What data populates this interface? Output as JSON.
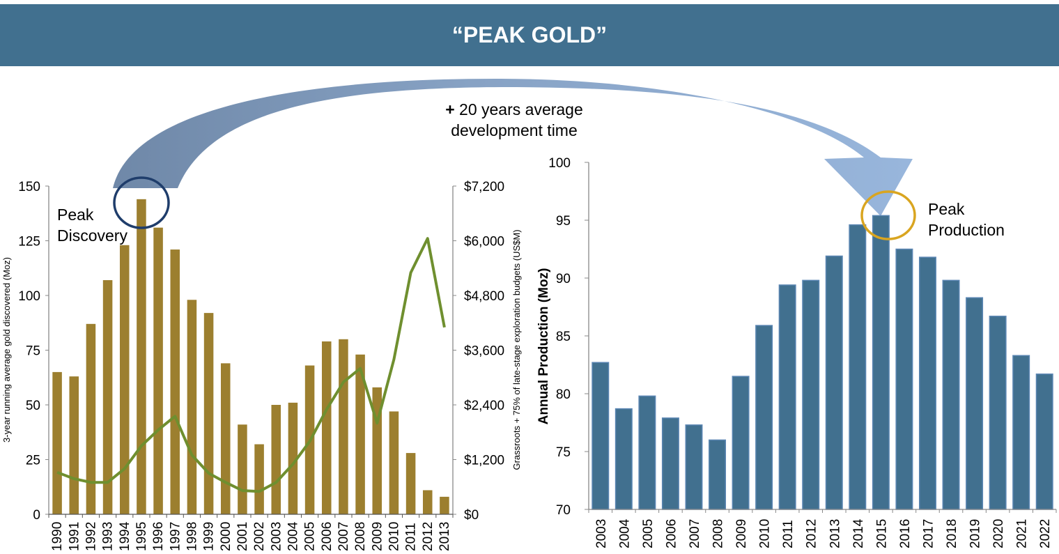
{
  "header": {
    "title": "“PEAK GOLD”",
    "background": "#41708f"
  },
  "arrow_annotation": {
    "plus_sign": "+",
    "line1": "20 years average",
    "line2": "development time"
  },
  "chart_data": [
    {
      "type": "bar",
      "name": "gold-discovery-vs-exploration",
      "categories": [
        "1990",
        "1991",
        "1992",
        "1993",
        "1994",
        "1995",
        "1996",
        "1997",
        "1998",
        "1999",
        "2000",
        "2001",
        "2002",
        "2003",
        "2004",
        "2005",
        "2006",
        "2007",
        "2008",
        "2009",
        "2010",
        "2011",
        "2012",
        "2013"
      ],
      "series": [
        {
          "name": "3-year running average gold discovered",
          "type": "bar",
          "axis": "left",
          "color": "#9c7f2f",
          "values": [
            65,
            63,
            87,
            107,
            123,
            144,
            131,
            121,
            98,
            92,
            69,
            41,
            32,
            50,
            51,
            68,
            79,
            80,
            73,
            58,
            47,
            28,
            11,
            8
          ]
        },
        {
          "name": "Grassroots + 75% of late-stage exploration budgets",
          "type": "line",
          "axis": "right",
          "color": "#6f8f2f",
          "values": [
            920,
            780,
            700,
            700,
            1000,
            1500,
            1850,
            2150,
            1300,
            900,
            700,
            520,
            500,
            700,
            1100,
            1600,
            2300,
            2900,
            3200,
            2000,
            3400,
            5300,
            6050,
            4100
          ]
        }
      ],
      "ylabel": "3-year running average gold discovered (Moz)",
      "ylabel_right": "Grassroots + 75% of late-stage exploration budgets (US$M)",
      "ylim": [
        0,
        150
      ],
      "yticks": [
        "0",
        "25",
        "50",
        "75",
        "100",
        "125",
        "150"
      ],
      "ylim_right": [
        0,
        7200
      ],
      "yticks_right": [
        "$0",
        "$1,200",
        "$2,400",
        "$3,600",
        "$4,800",
        "$6,000",
        "$7,200"
      ],
      "annotation": {
        "line1": "Peak",
        "line2": "Discovery",
        "highlight_category": "1995",
        "circle_color": "#1f3d6b"
      },
      "grid": false
    },
    {
      "type": "bar",
      "name": "annual-gold-production",
      "categories": [
        "2003",
        "2004",
        "2005",
        "2006",
        "2007",
        "2008",
        "2009",
        "2010",
        "2011",
        "2012",
        "2013",
        "2014",
        "2015",
        "2016",
        "2017",
        "2018",
        "2019",
        "2020",
        "2021",
        "2022"
      ],
      "series": [
        {
          "name": "Annual Production",
          "color": "#41708f",
          "values": [
            82.7,
            78.7,
            79.8,
            77.9,
            77.3,
            76.0,
            81.5,
            85.9,
            89.4,
            89.8,
            91.9,
            94.6,
            95.4,
            92.5,
            91.8,
            89.8,
            88.3,
            86.7,
            83.3,
            81.7
          ]
        }
      ],
      "ylabel": "Annual Production (Moz)",
      "ylim": [
        70,
        100
      ],
      "yticks": [
        "70",
        "75",
        "80",
        "85",
        "90",
        "95",
        "100"
      ],
      "annotation": {
        "line1": "Peak",
        "line2": "Production",
        "highlight_category": "2015",
        "circle_color": "#d9a520"
      },
      "grid": false
    }
  ]
}
